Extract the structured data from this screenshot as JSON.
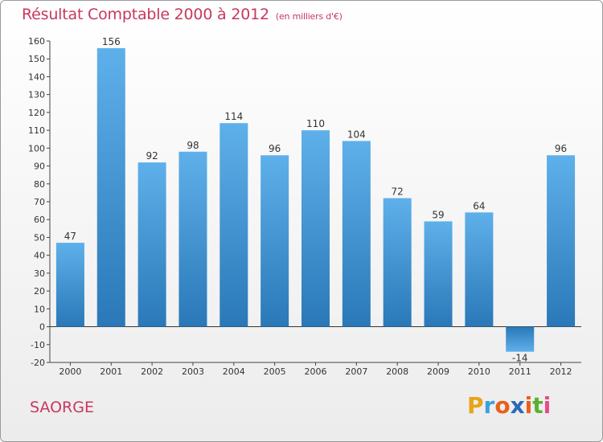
{
  "chart_data": {
    "type": "bar",
    "title": "Résultat Comptable 2000 à 2012",
    "subtitle": "(en milliers d'€)",
    "categories": [
      "2000",
      "2001",
      "2002",
      "2003",
      "2004",
      "2005",
      "2006",
      "2007",
      "2008",
      "2009",
      "2010",
      "2011",
      "2012"
    ],
    "values": [
      47,
      156,
      92,
      98,
      114,
      96,
      110,
      104,
      72,
      59,
      64,
      -14,
      96
    ],
    "value_labels": [
      "47",
      "156",
      "92",
      "98",
      "114",
      "96",
      "110",
      "104",
      "72",
      "59",
      "64",
      "-14",
      "96"
    ],
    "ylim": [
      -20,
      160
    ],
    "yticks": [
      -20,
      -10,
      0,
      10,
      20,
      30,
      40,
      50,
      60,
      70,
      80,
      90,
      100,
      110,
      120,
      130,
      140,
      150,
      160
    ],
    "grid": false,
    "xlabel": "",
    "ylabel": ""
  },
  "footer": {
    "place": "SAORGE",
    "logo_letters": [
      "P",
      "r",
      "o",
      "x",
      "i",
      "t",
      "i"
    ],
    "logo_colors": [
      "#e8a317",
      "#3aa0dc",
      "#e8601a",
      "#2a6ab8",
      "#e8601a",
      "#5ab034",
      "#e84a8a"
    ]
  },
  "colors": {
    "title": "#c8385e",
    "bar_light": "#5eb0ea",
    "bar_dark": "#2a78b8"
  }
}
